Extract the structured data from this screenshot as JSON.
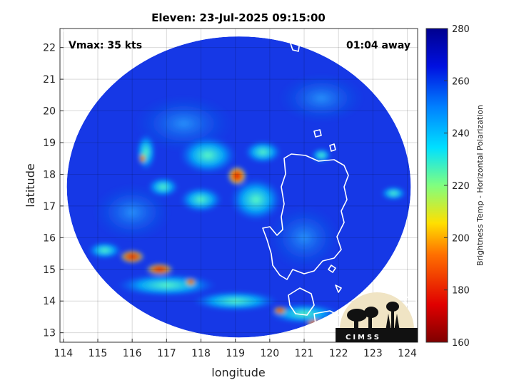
{
  "chart_data": {
    "type": "heatmap",
    "title": "Eleven: 23-Jul-2025 09:15:00",
    "annotations": {
      "vmax": "Vmax: 35 kts",
      "away": "01:04 away"
    },
    "xlabel": "longitude",
    "ylabel": "latitude",
    "xlim": [
      113.9,
      124.3
    ],
    "ylim": [
      12.7,
      22.6
    ],
    "x_ticks": [
      114,
      115,
      116,
      117,
      118,
      119,
      120,
      121,
      122,
      123,
      124
    ],
    "y_ticks": [
      13,
      14,
      15,
      16,
      17,
      18,
      19,
      20,
      21,
      22
    ],
    "grid": true,
    "colorbar": {
      "label": "Brightness Temp - Horizontal Polarization",
      "range": [
        160,
        280
      ],
      "ticks": [
        160,
        180,
        200,
        220,
        240,
        260,
        280
      ],
      "colormap": "jet"
    },
    "swath": {
      "center_lon": 119.1,
      "center_lat": 17.6,
      "radius_deg": 5.0,
      "background_temp": 268
    },
    "storm_center": {
      "lon": 119.0,
      "lat": 18.0
    },
    "features": [
      {
        "name": "eye-core",
        "lon": 119.05,
        "lat": 17.95,
        "temp": 188
      },
      {
        "name": "west-rainband",
        "lon": 116.5,
        "lat": 18.5,
        "temp": 222
      },
      {
        "name": "sw-convection",
        "lon": 116.3,
        "lat": 15.2,
        "temp": 180
      },
      {
        "name": "south-band",
        "lon": 119.0,
        "lat": 14.2,
        "temp": 222
      },
      {
        "name": "east-cell",
        "lon": 123.6,
        "lat": 17.4,
        "temp": 222
      }
    ],
    "logo": {
      "text": "CIMSS",
      "colors": {
        "panel": "#f0e4c4",
        "silhouette": "#111111"
      }
    }
  }
}
